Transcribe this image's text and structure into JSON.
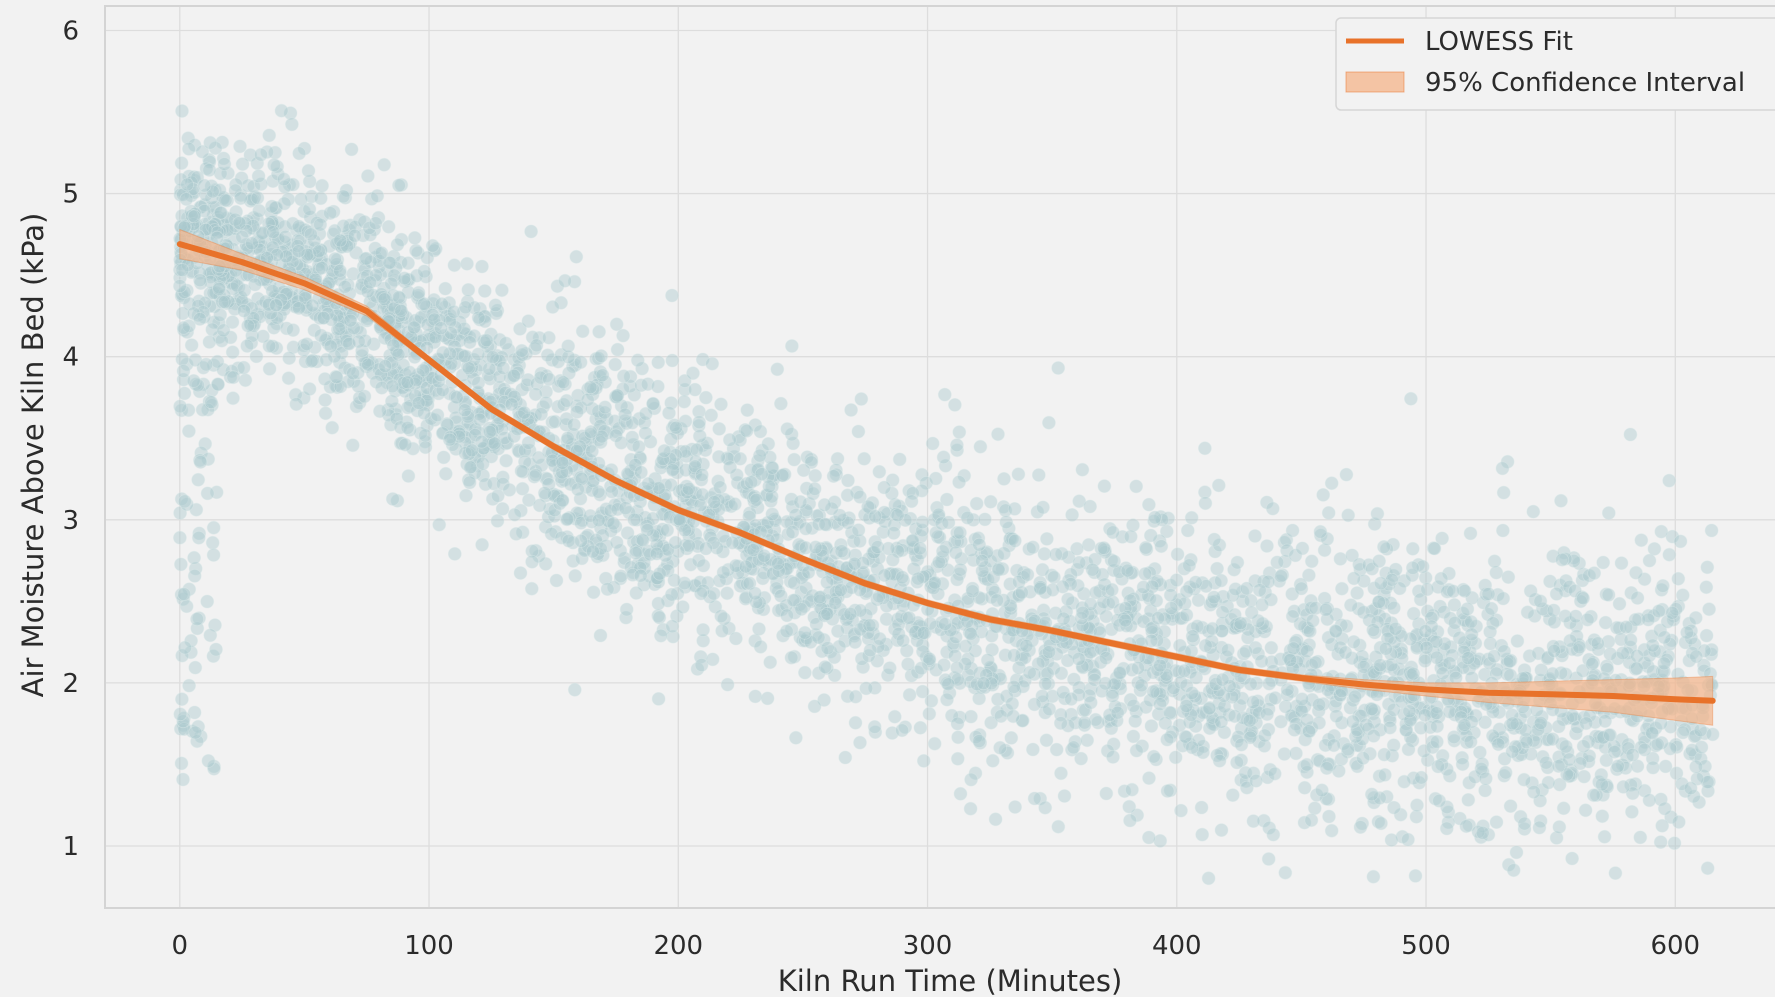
{
  "chart_data": {
    "type": "scatter",
    "xlabel": "Kiln Run Time (Minutes)",
    "ylabel": "Air Moisture Above Kiln Bed (kPa)",
    "xlim": [
      -30,
      640
    ],
    "ylim": [
      0.62,
      6.15
    ],
    "xticks": [
      0,
      100,
      200,
      300,
      400,
      500,
      600
    ],
    "yticks": [
      1,
      2,
      3,
      4,
      5,
      6
    ],
    "grid": true,
    "legend": {
      "placement": "top-right",
      "entries": [
        {
          "label": "LOWESS Fit",
          "kind": "line"
        },
        {
          "label": "95% Confidence Interval",
          "kind": "band"
        }
      ]
    },
    "colors": {
      "scatter": "#a9c8cc",
      "scatter_edge": "#dbe9ea",
      "fit": "#e8722a",
      "band": "#f4b489",
      "background": "#f2f2f2",
      "grid": "#dddddd"
    },
    "scatter_summary": {
      "approx_points": 4200,
      "x_range": [
        0,
        615
      ],
      "spread_sd_kpa": 0.45
    },
    "series": [
      {
        "name": "LOWESS Fit",
        "x": [
          0,
          25,
          50,
          75,
          100,
          125,
          150,
          175,
          200,
          225,
          250,
          275,
          300,
          325,
          350,
          375,
          400,
          425,
          450,
          475,
          500,
          525,
          550,
          575,
          600,
          615
        ],
        "y": [
          4.69,
          4.58,
          4.45,
          4.28,
          3.98,
          3.68,
          3.45,
          3.24,
          3.06,
          2.92,
          2.76,
          2.61,
          2.49,
          2.39,
          2.32,
          2.24,
          2.16,
          2.08,
          2.03,
          1.99,
          1.96,
          1.94,
          1.93,
          1.92,
          1.9,
          1.89
        ],
        "ci_lower": [
          4.6,
          4.53,
          4.41,
          4.25,
          3.96,
          3.66,
          3.43,
          3.22,
          3.04,
          2.9,
          2.74,
          2.59,
          2.47,
          2.37,
          2.3,
          2.22,
          2.14,
          2.06,
          2.01,
          1.96,
          1.92,
          1.88,
          1.85,
          1.82,
          1.77,
          1.74
        ],
        "ci_upper": [
          4.78,
          4.63,
          4.49,
          4.31,
          4.0,
          3.7,
          3.47,
          3.26,
          3.08,
          2.94,
          2.78,
          2.63,
          2.51,
          2.41,
          2.34,
          2.26,
          2.18,
          2.1,
          2.05,
          2.02,
          2.0,
          2.0,
          2.01,
          2.02,
          2.03,
          2.04
        ]
      }
    ]
  }
}
